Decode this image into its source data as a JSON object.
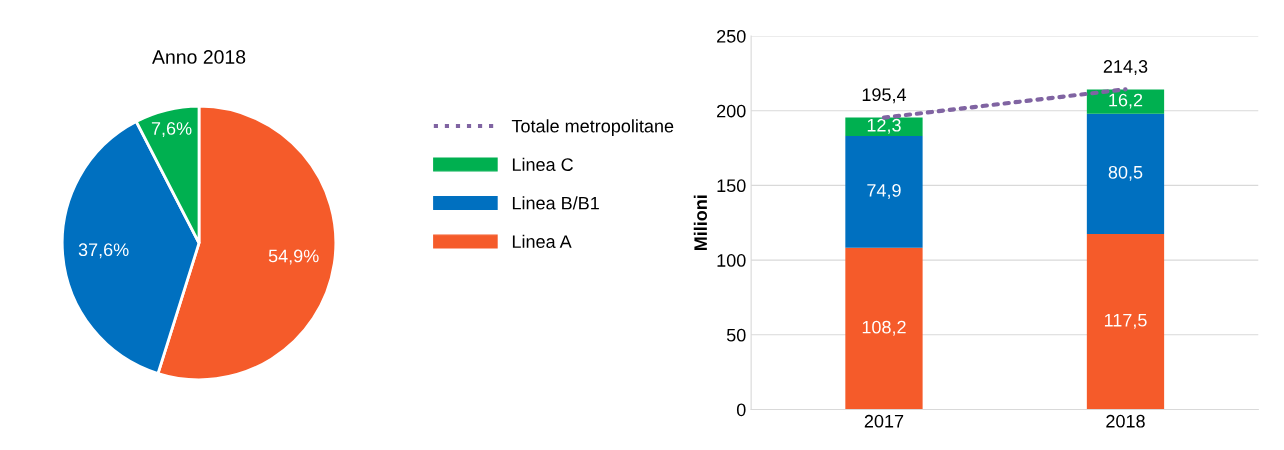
{
  "chart_data": [
    {
      "type": "pie",
      "title": "Anno 2018",
      "categories": [
        null,
        null,
        null
      ],
      "values": [
        54.9,
        37.6,
        7.6
      ],
      "colors": [
        "#f55b2a",
        "#0070c0",
        "#00b050"
      ],
      "value_labels": [
        "54,9%",
        "37,6%",
        "7,6%"
      ]
    },
    {
      "type": "bar",
      "ylabel": "Milioni",
      "categories": [
        "2017",
        "2018"
      ],
      "stacked": true,
      "ylim": [
        0,
        250
      ],
      "yticks": [
        0,
        50,
        100,
        150,
        200,
        250
      ],
      "grid": "y",
      "legend": "left",
      "series": [
        {
          "name": "Linea A",
          "color": "#f55b2a",
          "values": [
            108.2,
            117.5
          ],
          "value_labels": [
            "108,2",
            "117,5"
          ]
        },
        {
          "name": "Linea B/B1",
          "color": "#0070c0",
          "values": [
            74.9,
            80.5
          ],
          "value_labels": [
            "74,9",
            "80,5"
          ]
        },
        {
          "name": "Linea C",
          "color": "#00b050",
          "values": [
            12.3,
            16.2
          ],
          "value_labels": [
            "12,3",
            "16,2"
          ]
        },
        {
          "name": "Totale metropolitane",
          "type": "line",
          "color": "#8064a2",
          "line_style": "dotted",
          "values": [
            195.4,
            214.3
          ],
          "value_labels": [
            "195,4",
            "214,3"
          ]
        }
      ]
    }
  ]
}
